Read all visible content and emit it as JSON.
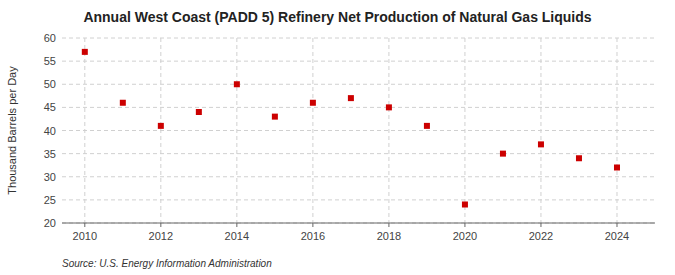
{
  "chart_data": {
    "type": "scatter",
    "title": "Annual West Coast (PADD 5) Refinery Net Production of Natural Gas Liquids",
    "ylabel": "Thousand Barrels per Day",
    "source": "Source: U.S. Energy Information Administration",
    "x": [
      2010,
      2011,
      2012,
      2013,
      2014,
      2015,
      2016,
      2017,
      2018,
      2019,
      2020,
      2021,
      2022,
      2023,
      2024
    ],
    "values": [
      57.0,
      46.0,
      41.0,
      44.0,
      50.0,
      43.0,
      46.0,
      47.0,
      45.0,
      41.0,
      24.0,
      35.0,
      37.0,
      34.0,
      32.0
    ],
    "color": "#cc0000",
    "marker": "square",
    "xlim": [
      2009.4,
      2025.0
    ],
    "ylim": [
      20,
      60
    ],
    "xticks": [
      2010,
      2012,
      2014,
      2016,
      2018,
      2020,
      2022,
      2024
    ],
    "yticks": [
      20,
      25,
      30,
      35,
      40,
      45,
      50,
      55,
      60
    ],
    "grid": true
  }
}
